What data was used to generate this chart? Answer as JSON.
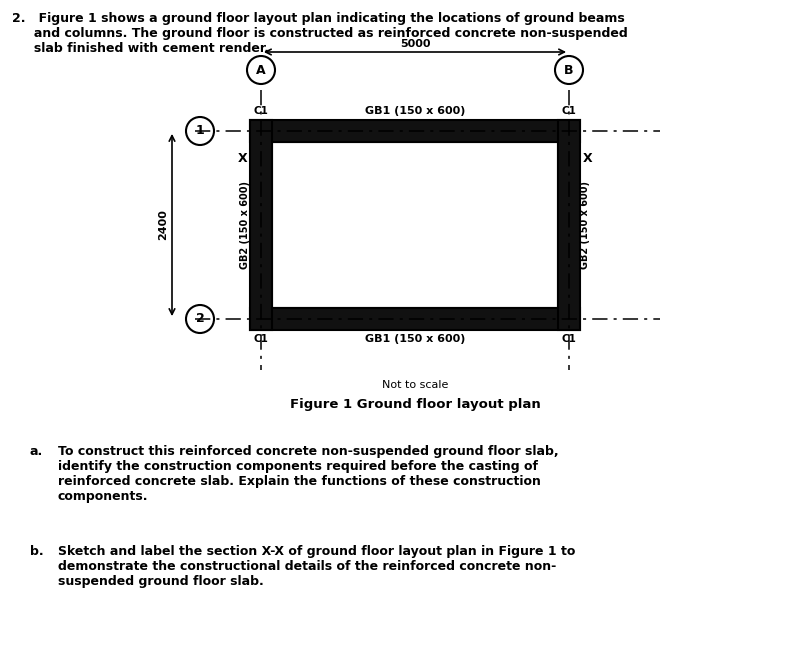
{
  "bg_color": "#ffffff",
  "beam_fill_color": "#111111",
  "figure_caption": "Figure 1 Ground floor layout plan",
  "not_to_scale": "Not to scale",
  "dim_horizontal": "5000",
  "dim_vertical": "2400",
  "label_gb1": "GB1 (150 x 600)",
  "label_gb2": "GB2 (150 x 600)",
  "label_c1": "C1",
  "label_A": "A",
  "label_B": "B",
  "label_1": "1",
  "label_2": "2",
  "label_X": "X",
  "q_header": "2.   Figure 1 shows a ground floor layout plan indicating the locations of ground beams\n     and columns. The ground floor is constructed as reinforced concrete non-suspended\n     slab finished with cement render.",
  "q_a_label": "a.",
  "q_a_text": "To construct this reinforced concrete non-suspended ground floor slab,\nidentify the construction components required before the casting of\nreinforced concrete slab. Explain the functions of these construction\ncomponents.",
  "q_b_label": "b.",
  "q_b_text": "Sketch and label the section X-X of ground floor layout plan in Figure 1 to\ndemonstrate the constructional details of the reinforced concrete non-\nsuspended ground floor slab."
}
